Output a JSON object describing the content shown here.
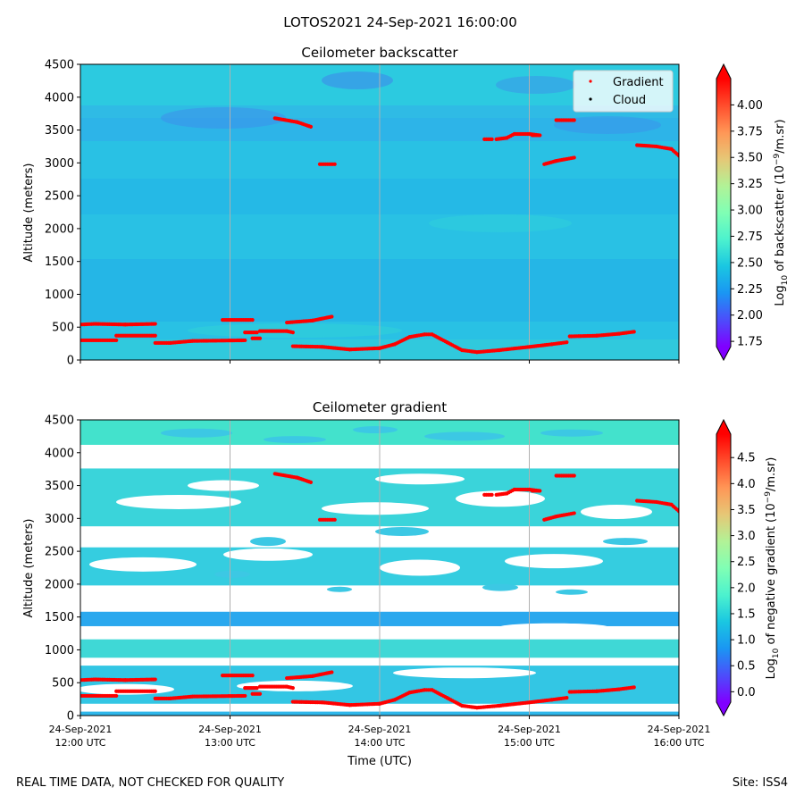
{
  "figure": {
    "suptitle": "LOTOS2021 24-Sep-2021 16:00:00",
    "footer_left": "REAL TIME DATA, NOT CHECKED FOR QUALITY",
    "footer_right": "Site: ISS4"
  },
  "chart_data": [
    {
      "type": "heatmap",
      "title": "Ceilometer backscatter",
      "xlabel": "",
      "ylabel": "Altitude (meters)",
      "xlim": [
        "24-Sep-2021 12:00 UTC",
        "24-Sep-2021 16:00 UTC"
      ],
      "ylim": [
        0,
        4500
      ],
      "yticks": [
        "0",
        "500",
        "1000",
        "1500",
        "2000",
        "2500",
        "3000",
        "3500",
        "4000",
        "4500"
      ],
      "colorbar": {
        "label": "Log10 of backscatter (10^-9/m.sr)",
        "label_main": "Log",
        "label_sub": "10",
        "label_mid": " of backscatter (10",
        "label_sup": "−9",
        "label_end": "/m.sr)",
        "range": [
          1.7,
          4.25
        ],
        "ticks": [
          "1.75",
          "2.00",
          "2.25",
          "2.50",
          "2.75",
          "3.00",
          "3.25",
          "3.50",
          "3.75",
          "4.00"
        ]
      },
      "legend": [
        {
          "label": "Gradient",
          "color": "#ff0000"
        },
        {
          "label": "Cloud",
          "color": "#000000"
        }
      ],
      "legend_position": "top-right",
      "grid": "vertical hour lines"
    },
    {
      "type": "heatmap",
      "title": "Ceilometer gradient",
      "xlabel": "Time (UTC)",
      "ylabel": "Altitude (meters)",
      "xlim": [
        "24-Sep-2021 12:00 UTC",
        "24-Sep-2021 16:00 UTC"
      ],
      "ylim": [
        0,
        4500
      ],
      "yticks": [
        "0",
        "500",
        "1000",
        "1500",
        "2000",
        "2500",
        "3000",
        "3500",
        "4000",
        "4500"
      ],
      "xticks": [
        {
          "date": "24-Sep-2021",
          "time": "12:00 UTC"
        },
        {
          "date": "24-Sep-2021",
          "time": "13:00 UTC"
        },
        {
          "date": "24-Sep-2021",
          "time": "14:00 UTC"
        },
        {
          "date": "24-Sep-2021",
          "time": "15:00 UTC"
        },
        {
          "date": "24-Sep-2021",
          "time": "16:00 UTC"
        }
      ],
      "colorbar": {
        "label": "Log10 of negative gradient (10^-9/m.sr)",
        "label_main": "Log",
        "label_sub": "10",
        "label_mid": " of negative gradient (10",
        "label_sup": "−9",
        "label_end": "/m.sr)",
        "range": [
          -0.2,
          4.95
        ],
        "ticks": [
          "0.0",
          "0.5",
          "1.0",
          "1.5",
          "2.0",
          "2.5",
          "3.0",
          "3.5",
          "4.0",
          "4.5"
        ]
      },
      "bands_alt_m": [
        [
          0,
          60
        ],
        [
          180,
          760
        ],
        [
          880,
          1160
        ],
        [
          1360,
          1580
        ],
        [
          1980,
          2560
        ],
        [
          2880,
          3760
        ],
        [
          4120,
          4500
        ]
      ],
      "grid": "vertical hour lines"
    }
  ],
  "gradient_points": {
    "unit_x": "hours since 12:00 UTC",
    "unit_y": "meters",
    "segments": [
      [
        [
          0.0,
          300
        ],
        [
          0.24,
          300
        ]
      ],
      [
        [
          0.24,
          370
        ],
        [
          0.5,
          370
        ]
      ],
      [
        [
          0.5,
          260
        ],
        [
          0.6,
          260
        ],
        [
          0.75,
          290
        ],
        [
          1.1,
          300
        ]
      ],
      [
        [
          0.0,
          540
        ],
        [
          0.1,
          550
        ],
        [
          0.3,
          540
        ],
        [
          0.5,
          550
        ]
      ],
      [
        [
          0.95,
          610
        ],
        [
          1.15,
          610
        ]
      ],
      [
        [
          1.1,
          420
        ],
        [
          1.18,
          420
        ]
      ],
      [
        [
          1.15,
          330
        ],
        [
          1.2,
          330
        ]
      ],
      [
        [
          1.2,
          440
        ],
        [
          1.38,
          440
        ],
        [
          1.42,
          420
        ]
      ],
      [
        [
          1.38,
          570
        ],
        [
          1.55,
          600
        ],
        [
          1.68,
          660
        ]
      ],
      [
        [
          1.42,
          210
        ],
        [
          1.62,
          200
        ],
        [
          1.8,
          160
        ],
        [
          2.0,
          180
        ]
      ],
      [
        [
          2.0,
          180
        ],
        [
          2.1,
          240
        ],
        [
          2.2,
          350
        ],
        [
          2.3,
          390
        ],
        [
          2.35,
          390
        ],
        [
          2.45,
          270
        ],
        [
          2.55,
          150
        ],
        [
          2.65,
          120
        ],
        [
          2.8,
          150
        ],
        [
          3.0,
          200
        ],
        [
          3.15,
          240
        ],
        [
          3.25,
          270
        ]
      ],
      [
        [
          3.27,
          360
        ],
        [
          3.45,
          370
        ],
        [
          3.6,
          400
        ],
        [
          3.7,
          430
        ]
      ],
      [
        [
          1.3,
          3680
        ],
        [
          1.45,
          3620
        ],
        [
          1.54,
          3550
        ]
      ],
      [
        [
          1.6,
          2980
        ],
        [
          1.7,
          2980
        ]
      ],
      [
        [
          2.7,
          3360
        ],
        [
          2.75,
          3360
        ]
      ],
      [
        [
          2.78,
          3360
        ],
        [
          2.85,
          3380
        ],
        [
          2.9,
          3440
        ],
        [
          3.0,
          3440
        ],
        [
          3.07,
          3420
        ]
      ],
      [
        [
          3.02,
          3420
        ],
        [
          3.07,
          3420
        ]
      ],
      [
        [
          3.18,
          3650
        ],
        [
          3.3,
          3650
        ]
      ],
      [
        [
          3.1,
          2980
        ],
        [
          3.18,
          3030
        ],
        [
          3.3,
          3080
        ]
      ],
      [
        [
          3.72,
          3270
        ],
        [
          3.85,
          3250
        ],
        [
          3.95,
          3210
        ],
        [
          4.0,
          3110
        ]
      ]
    ]
  }
}
